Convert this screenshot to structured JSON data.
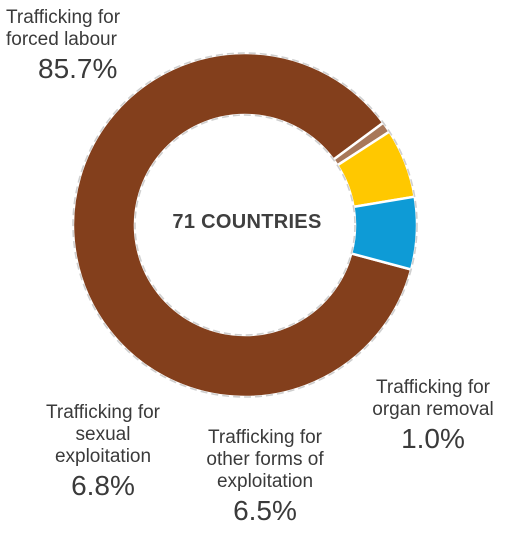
{
  "chart_data": {
    "type": "pie",
    "center_label": "71 COUNTRIES",
    "slices": [
      {
        "name": "Trafficking for forced labour",
        "label_lines": [
          "Trafficking for",
          "forced labour"
        ],
        "value": 85.7,
        "value_label": "85.7%",
        "color": "#833f1c"
      },
      {
        "name": "Trafficking for organ removal",
        "label_lines": [
          "Trafficking for",
          "organ removal"
        ],
        "value": 1.0,
        "value_label": "1.0%",
        "color": "#a8785a"
      },
      {
        "name": "Trafficking for other forms of exploitation",
        "label_lines": [
          "Trafficking for",
          "other forms of",
          "exploitation"
        ],
        "value": 6.5,
        "value_label": "6.5%",
        "color": "#ffc800"
      },
      {
        "name": "Trafficking for sexual exploitation",
        "label_lines": [
          "Trafficking for",
          "sexual",
          "exploitation"
        ],
        "value": 6.8,
        "value_label": "6.8%",
        "color": "#0e9bd6"
      }
    ],
    "legend": "none",
    "style": "donut"
  }
}
